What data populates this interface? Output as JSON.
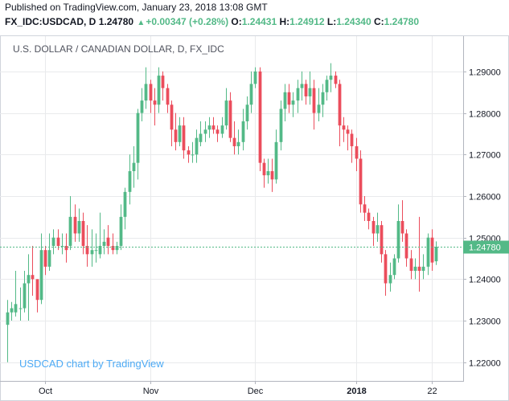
{
  "published": "Published on TradingView.com, January 23, 2018 13:08 GMT",
  "quote": {
    "symbol": "FX_IDC:USDCAD, D",
    "last": "1.24780",
    "change": "+0.00347 (+0.28%)",
    "o_label": "O:",
    "o": "1.24431",
    "h_label": "H:",
    "h": "1.24912",
    "l_label": "L:",
    "l": "1.24340",
    "c_label": "C:",
    "c": "1.24780"
  },
  "colors": {
    "up": "#53b987",
    "down": "#eb4d5c",
    "grid": "#e9eaec",
    "axis": "#b2b5be",
    "last_line": "#53b987"
  },
  "chart_data": {
    "type": "candlestick",
    "title": "U.S. DOLLAR / CANADIAN DOLLAR, D, FX_IDC",
    "watermark": "USDCAD chart by TradingView",
    "y_ticks": [
      "1.29000",
      "1.28000",
      "1.27000",
      "1.26000",
      "1.25000",
      "1.24000",
      "1.23000",
      "1.22000"
    ],
    "ylim": [
      1.2155,
      1.2985
    ],
    "x_ticks": [
      "Oct",
      "Nov",
      "Dec",
      "2018",
      "22"
    ],
    "last_price_label": "1.24780",
    "last_price": 1.2478,
    "candles": [
      {
        "o": 1.229,
        "h": 1.235,
        "l": 1.22,
        "c": 1.232
      },
      {
        "o": 1.232,
        "h": 1.2345,
        "l": 1.23,
        "c": 1.233
      },
      {
        "o": 1.232,
        "h": 1.242,
        "l": 1.231,
        "c": 1.234
      },
      {
        "o": 1.233,
        "h": 1.238,
        "l": 1.23,
        "c": 1.233
      },
      {
        "o": 1.233,
        "h": 1.242,
        "l": 1.232,
        "c": 1.239
      },
      {
        "o": 1.239,
        "h": 1.246,
        "l": 1.23,
        "c": 1.241
      },
      {
        "o": 1.241,
        "h": 1.248,
        "l": 1.236,
        "c": 1.24
      },
      {
        "o": 1.24,
        "h": 1.24,
        "l": 1.232,
        "c": 1.235
      },
      {
        "o": 1.235,
        "h": 1.251,
        "l": 1.234,
        "c": 1.247
      },
      {
        "o": 1.247,
        "h": 1.248,
        "l": 1.241,
        "c": 1.243
      },
      {
        "o": 1.243,
        "h": 1.251,
        "l": 1.242,
        "c": 1.247
      },
      {
        "o": 1.248,
        "h": 1.252,
        "l": 1.246,
        "c": 1.25
      },
      {
        "o": 1.25,
        "h": 1.252,
        "l": 1.247,
        "c": 1.248
      },
      {
        "o": 1.248,
        "h": 1.251,
        "l": 1.246,
        "c": 1.248
      },
      {
        "o": 1.248,
        "h": 1.251,
        "l": 1.244,
        "c": 1.247
      },
      {
        "o": 1.248,
        "h": 1.26,
        "l": 1.247,
        "c": 1.255
      },
      {
        "o": 1.255,
        "h": 1.258,
        "l": 1.249,
        "c": 1.251
      },
      {
        "o": 1.251,
        "h": 1.257,
        "l": 1.249,
        "c": 1.254
      },
      {
        "o": 1.254,
        "h": 1.256,
        "l": 1.246,
        "c": 1.248
      },
      {
        "o": 1.248,
        "h": 1.253,
        "l": 1.243,
        "c": 1.246
      },
      {
        "o": 1.246,
        "h": 1.252,
        "l": 1.243,
        "c": 1.247
      },
      {
        "o": 1.247,
        "h": 1.251,
        "l": 1.244,
        "c": 1.247
      },
      {
        "o": 1.246,
        "h": 1.256,
        "l": 1.245,
        "c": 1.248
      },
      {
        "o": 1.248,
        "h": 1.252,
        "l": 1.246,
        "c": 1.249
      },
      {
        "o": 1.25,
        "h": 1.253,
        "l": 1.246,
        "c": 1.248
      },
      {
        "o": 1.248,
        "h": 1.251,
        "l": 1.246,
        "c": 1.247
      },
      {
        "o": 1.247,
        "h": 1.249,
        "l": 1.246,
        "c": 1.248
      },
      {
        "o": 1.248,
        "h": 1.258,
        "l": 1.247,
        "c": 1.255
      },
      {
        "o": 1.255,
        "h": 1.262,
        "l": 1.252,
        "c": 1.261
      },
      {
        "o": 1.261,
        "h": 1.27,
        "l": 1.258,
        "c": 1.266
      },
      {
        "o": 1.266,
        "h": 1.272,
        "l": 1.262,
        "c": 1.268
      },
      {
        "o": 1.268,
        "h": 1.281,
        "l": 1.264,
        "c": 1.28
      },
      {
        "o": 1.28,
        "h": 1.286,
        "l": 1.278,
        "c": 1.283
      },
      {
        "o": 1.283,
        "h": 1.291,
        "l": 1.281,
        "c": 1.287
      },
      {
        "o": 1.287,
        "h": 1.288,
        "l": 1.28,
        "c": 1.283
      },
      {
        "o": 1.283,
        "h": 1.286,
        "l": 1.277,
        "c": 1.282
      },
      {
        "o": 1.282,
        "h": 1.291,
        "l": 1.28,
        "c": 1.289
      },
      {
        "o": 1.289,
        "h": 1.29,
        "l": 1.283,
        "c": 1.286
      },
      {
        "o": 1.286,
        "h": 1.287,
        "l": 1.28,
        "c": 1.282
      },
      {
        "o": 1.282,
        "h": 1.283,
        "l": 1.272,
        "c": 1.276
      },
      {
        "o": 1.276,
        "h": 1.28,
        "l": 1.271,
        "c": 1.273
      },
      {
        "o": 1.273,
        "h": 1.279,
        "l": 1.272,
        "c": 1.277
      },
      {
        "o": 1.277,
        "h": 1.279,
        "l": 1.269,
        "c": 1.271
      },
      {
        "o": 1.271,
        "h": 1.272,
        "l": 1.268,
        "c": 1.27
      },
      {
        "o": 1.27,
        "h": 1.273,
        "l": 1.268,
        "c": 1.27
      },
      {
        "o": 1.27,
        "h": 1.276,
        "l": 1.268,
        "c": 1.274
      },
      {
        "o": 1.273,
        "h": 1.278,
        "l": 1.272,
        "c": 1.275
      },
      {
        "o": 1.275,
        "h": 1.278,
        "l": 1.273,
        "c": 1.276
      },
      {
        "o": 1.276,
        "h": 1.279,
        "l": 1.274,
        "c": 1.277
      },
      {
        "o": 1.277,
        "h": 1.279,
        "l": 1.275,
        "c": 1.276
      },
      {
        "o": 1.276,
        "h": 1.277,
        "l": 1.273,
        "c": 1.275
      },
      {
        "o": 1.275,
        "h": 1.279,
        "l": 1.274,
        "c": 1.277
      },
      {
        "o": 1.277,
        "h": 1.286,
        "l": 1.276,
        "c": 1.283
      },
      {
        "o": 1.283,
        "h": 1.285,
        "l": 1.273,
        "c": 1.274
      },
      {
        "o": 1.274,
        "h": 1.278,
        "l": 1.27,
        "c": 1.272
      },
      {
        "o": 1.272,
        "h": 1.276,
        "l": 1.27,
        "c": 1.273
      },
      {
        "o": 1.273,
        "h": 1.281,
        "l": 1.271,
        "c": 1.278
      },
      {
        "o": 1.278,
        "h": 1.284,
        "l": 1.276,
        "c": 1.282
      },
      {
        "o": 1.282,
        "h": 1.29,
        "l": 1.28,
        "c": 1.287
      },
      {
        "o": 1.287,
        "h": 1.291,
        "l": 1.286,
        "c": 1.29
      },
      {
        "o": 1.29,
        "h": 1.291,
        "l": 1.266,
        "c": 1.268
      },
      {
        "o": 1.268,
        "h": 1.269,
        "l": 1.262,
        "c": 1.265
      },
      {
        "o": 1.265,
        "h": 1.269,
        "l": 1.263,
        "c": 1.266
      },
      {
        "o": 1.266,
        "h": 1.269,
        "l": 1.261,
        "c": 1.264
      },
      {
        "o": 1.264,
        "h": 1.276,
        "l": 1.263,
        "c": 1.273
      },
      {
        "o": 1.273,
        "h": 1.283,
        "l": 1.271,
        "c": 1.281
      },
      {
        "o": 1.281,
        "h": 1.287,
        "l": 1.278,
        "c": 1.285
      },
      {
        "o": 1.285,
        "h": 1.287,
        "l": 1.28,
        "c": 1.282
      },
      {
        "o": 1.282,
        "h": 1.285,
        "l": 1.279,
        "c": 1.283
      },
      {
        "o": 1.283,
        "h": 1.288,
        "l": 1.28,
        "c": 1.286
      },
      {
        "o": 1.286,
        "h": 1.29,
        "l": 1.283,
        "c": 1.287
      },
      {
        "o": 1.287,
        "h": 1.288,
        "l": 1.282,
        "c": 1.284
      },
      {
        "o": 1.284,
        "h": 1.29,
        "l": 1.282,
        "c": 1.286
      },
      {
        "o": 1.286,
        "h": 1.288,
        "l": 1.276,
        "c": 1.28
      },
      {
        "o": 1.28,
        "h": 1.286,
        "l": 1.278,
        "c": 1.282
      },
      {
        "o": 1.282,
        "h": 1.287,
        "l": 1.279,
        "c": 1.285
      },
      {
        "o": 1.285,
        "h": 1.289,
        "l": 1.283,
        "c": 1.288
      },
      {
        "o": 1.288,
        "h": 1.292,
        "l": 1.285,
        "c": 1.289
      },
      {
        "o": 1.289,
        "h": 1.29,
        "l": 1.286,
        "c": 1.287
      },
      {
        "o": 1.287,
        "h": 1.288,
        "l": 1.272,
        "c": 1.277
      },
      {
        "o": 1.277,
        "h": 1.279,
        "l": 1.273,
        "c": 1.276
      },
      {
        "o": 1.276,
        "h": 1.277,
        "l": 1.271,
        "c": 1.275
      },
      {
        "o": 1.275,
        "h": 1.276,
        "l": 1.268,
        "c": 1.272
      },
      {
        "o": 1.272,
        "h": 1.274,
        "l": 1.266,
        "c": 1.269
      },
      {
        "o": 1.269,
        "h": 1.271,
        "l": 1.256,
        "c": 1.258
      },
      {
        "o": 1.258,
        "h": 1.26,
        "l": 1.254,
        "c": 1.256
      },
      {
        "o": 1.256,
        "h": 1.257,
        "l": 1.252,
        "c": 1.254
      },
      {
        "o": 1.254,
        "h": 1.255,
        "l": 1.248,
        "c": 1.251
      },
      {
        "o": 1.251,
        "h": 1.256,
        "l": 1.249,
        "c": 1.253
      },
      {
        "o": 1.253,
        "h": 1.254,
        "l": 1.244,
        "c": 1.246
      },
      {
        "o": 1.246,
        "h": 1.247,
        "l": 1.236,
        "c": 1.239
      },
      {
        "o": 1.239,
        "h": 1.244,
        "l": 1.237,
        "c": 1.241
      },
      {
        "o": 1.241,
        "h": 1.246,
        "l": 1.24,
        "c": 1.245
      },
      {
        "o": 1.245,
        "h": 1.258,
        "l": 1.244,
        "c": 1.254
      },
      {
        "o": 1.254,
        "h": 1.259,
        "l": 1.249,
        "c": 1.251
      },
      {
        "o": 1.251,
        "h": 1.252,
        "l": 1.243,
        "c": 1.245
      },
      {
        "o": 1.245,
        "h": 1.247,
        "l": 1.24,
        "c": 1.242
      },
      {
        "o": 1.242,
        "h": 1.245,
        "l": 1.24,
        "c": 1.243
      },
      {
        "o": 1.243,
        "h": 1.255,
        "l": 1.237,
        "c": 1.242
      },
      {
        "o": 1.242,
        "h": 1.246,
        "l": 1.24,
        "c": 1.243
      },
      {
        "o": 1.243,
        "h": 1.251,
        "l": 1.241,
        "c": 1.25
      },
      {
        "o": 1.25,
        "h": 1.252,
        "l": 1.242,
        "c": 1.244
      },
      {
        "o": 1.2443,
        "h": 1.2491,
        "l": 1.2434,
        "c": 1.2478
      }
    ]
  }
}
